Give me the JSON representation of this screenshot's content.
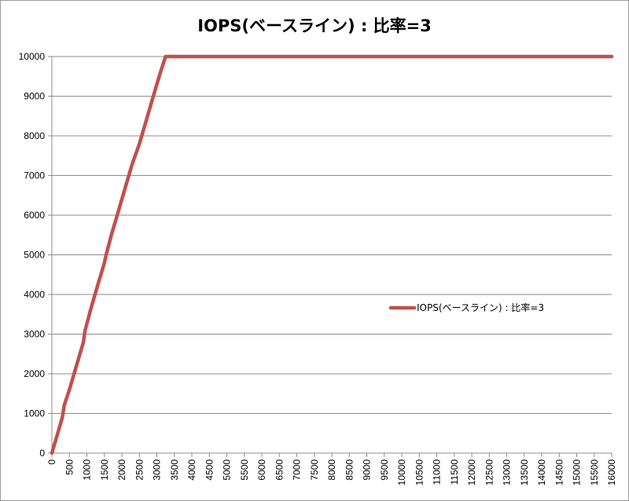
{
  "chart_data": {
    "type": "line",
    "title": "IOPS(ベースライン) : 比率=3",
    "xlabel": "",
    "ylabel": "",
    "xlim": [
      0,
      16000
    ],
    "ylim": [
      0,
      10000
    ],
    "x_ticks": [
      0,
      500,
      1000,
      1500,
      2000,
      2500,
      3000,
      3500,
      4000,
      4500,
      5000,
      5500,
      6000,
      6500,
      7000,
      7500,
      8000,
      8500,
      9000,
      9500,
      10000,
      10500,
      11000,
      11500,
      12000,
      12500,
      13000,
      13500,
      14000,
      14500,
      15000,
      15500,
      16000
    ],
    "y_ticks": [
      0,
      1000,
      2000,
      3000,
      4000,
      5000,
      6000,
      7000,
      8000,
      9000,
      10000
    ],
    "grid": "horizontal",
    "legend_position": "right",
    "series": [
      {
        "name": "IOPS(ベースライン) : 比率=3",
        "color": "#c0504d",
        "x": [
          0,
          150,
          300,
          350,
          500,
          700,
          900,
          950,
          1100,
          1300,
          1500,
          1550,
          1700,
          1900,
          2100,
          2300,
          2500,
          2700,
          2750,
          2900,
          3100,
          3250,
          3400,
          5000,
          8000,
          12000,
          16000
        ],
        "y": [
          0,
          450,
          900,
          1200,
          1600,
          2200,
          2800,
          3100,
          3600,
          4200,
          4800,
          5000,
          5500,
          6100,
          6700,
          7300,
          7800,
          8400,
          8550,
          9000,
          9600,
          10000,
          10000,
          10000,
          10000,
          10000,
          10000
        ]
      }
    ]
  }
}
